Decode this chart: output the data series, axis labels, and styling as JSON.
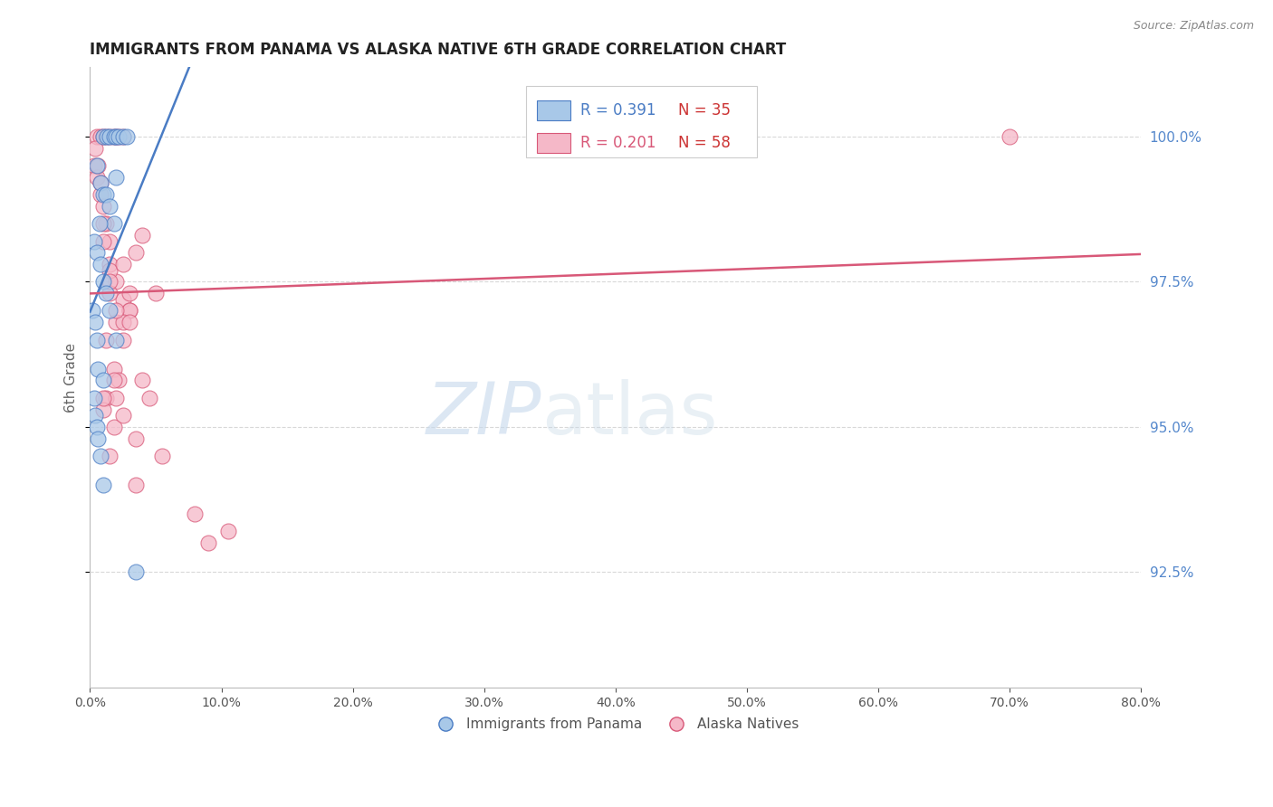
{
  "title": "IMMIGRANTS FROM PANAMA VS ALASKA NATIVE 6TH GRADE CORRELATION CHART",
  "source_text": "Source: ZipAtlas.com",
  "ylabel_left": "6th Grade",
  "legend_label_blue": "Immigrants from Panama",
  "legend_label_pink": "Alaska Natives",
  "blue_R": 0.391,
  "blue_N": 35,
  "pink_R": 0.201,
  "pink_N": 58,
  "xlim": [
    0.0,
    80.0
  ],
  "ylim": [
    90.5,
    101.2
  ],
  "yticks_right": [
    92.5,
    95.0,
    97.5,
    100.0
  ],
  "xticks": [
    0.0,
    10.0,
    20.0,
    30.0,
    40.0,
    50.0,
    60.0,
    70.0,
    80.0
  ],
  "blue_color": "#a8c8e8",
  "pink_color": "#f5b8c8",
  "blue_line_color": "#4a7cc4",
  "pink_line_color": "#d85878",
  "background_color": "#ffffff",
  "grid_color": "#d8d8d8",
  "right_axis_color": "#5588cc",
  "blue_x": [
    1.0,
    1.3,
    1.5,
    1.8,
    2.0,
    2.2,
    2.5,
    2.8,
    0.5,
    0.8,
    1.0,
    1.2,
    1.5,
    1.8,
    2.0,
    0.3,
    0.5,
    0.8,
    1.0,
    1.2,
    0.2,
    0.4,
    0.5,
    0.6,
    0.7,
    0.3,
    0.4,
    0.5,
    0.6,
    0.8,
    1.0,
    1.5,
    2.0,
    3.5,
    1.0
  ],
  "blue_y": [
    100.0,
    100.0,
    100.0,
    100.0,
    100.0,
    100.0,
    100.0,
    100.0,
    99.5,
    99.2,
    99.0,
    99.0,
    98.8,
    98.5,
    99.3,
    98.2,
    98.0,
    97.8,
    97.5,
    97.3,
    97.0,
    96.8,
    96.5,
    96.0,
    98.5,
    95.5,
    95.2,
    95.0,
    94.8,
    94.5,
    95.8,
    97.0,
    96.5,
    92.5,
    94.0
  ],
  "pink_x": [
    0.5,
    0.8,
    1.0,
    1.2,
    1.5,
    1.8,
    2.0,
    2.2,
    2.5,
    0.3,
    0.5,
    0.8,
    1.0,
    1.2,
    1.5,
    0.4,
    0.6,
    0.8,
    1.0,
    1.5,
    2.0,
    2.5,
    3.0,
    3.5,
    1.5,
    2.0,
    2.5,
    3.0,
    1.0,
    1.5,
    2.5,
    4.0,
    5.0,
    1.8,
    2.2,
    1.2,
    1.8,
    2.5,
    3.0,
    1.0,
    1.5,
    2.0,
    3.5,
    4.5,
    1.5,
    2.0,
    3.0,
    4.0,
    1.2,
    1.8,
    2.5,
    3.5,
    5.5,
    8.0,
    9.0,
    10.5,
    70.0,
    1.0
  ],
  "pink_y": [
    100.0,
    100.0,
    100.0,
    100.0,
    100.0,
    100.0,
    100.0,
    100.0,
    100.0,
    99.5,
    99.3,
    99.0,
    98.8,
    98.5,
    98.2,
    99.8,
    99.5,
    99.2,
    98.5,
    97.8,
    97.5,
    97.2,
    97.0,
    98.0,
    97.3,
    96.8,
    96.5,
    97.0,
    98.2,
    97.7,
    97.8,
    98.3,
    97.3,
    96.0,
    95.8,
    95.5,
    95.0,
    96.8,
    97.3,
    95.3,
    94.5,
    95.5,
    94.0,
    95.5,
    97.5,
    97.0,
    96.8,
    95.8,
    96.5,
    95.8,
    95.2,
    94.8,
    94.5,
    93.5,
    93.0,
    93.2,
    100.0,
    95.5
  ]
}
